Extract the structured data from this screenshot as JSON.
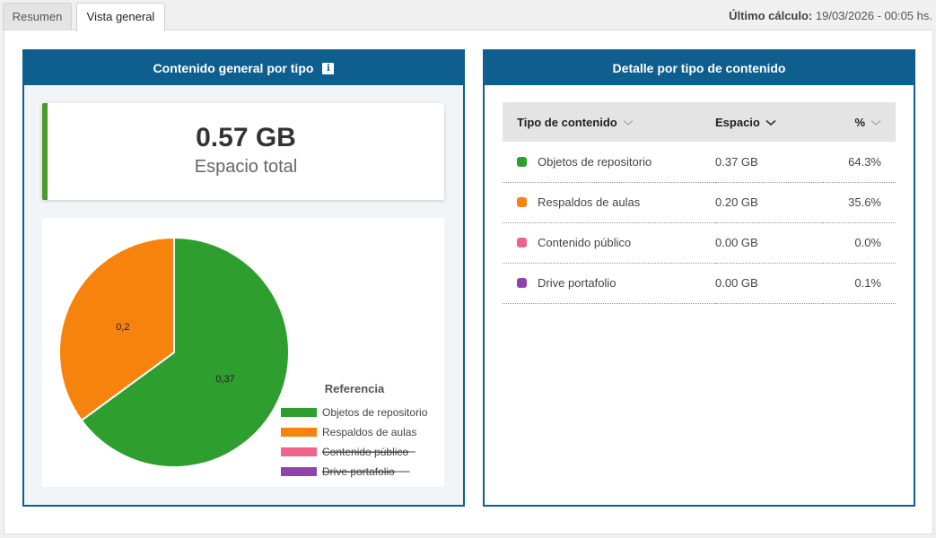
{
  "tabs": [
    {
      "label": "Resumen",
      "active": false
    },
    {
      "label": "Vista general",
      "active": true
    }
  ],
  "last_calc": {
    "label": "Último cálculo:",
    "value": "19/03/2026 - 00:05 hs."
  },
  "left_panel": {
    "title": "Contenido general por tipo",
    "info_icon": "info-icon",
    "total_value": "0.57 GB",
    "total_label": "Espacio total"
  },
  "chart_data": {
    "type": "pie",
    "legend_title": "Referencia",
    "legend_placement": "bottom-right",
    "slices": [
      {
        "label": "Objetos de repositorio",
        "value": 0.37,
        "display": "0,37",
        "color": "#2e9e2e",
        "visible": true
      },
      {
        "label": "Respaldos de aulas",
        "value": 0.2,
        "display": "0,2",
        "color": "#f7830f",
        "visible": true
      },
      {
        "label": "Contenido público",
        "value": 0.0,
        "display": "",
        "color": "#f0638a",
        "visible": false
      },
      {
        "label": "Drive portafolio",
        "value": 0.0,
        "display": "",
        "color": "#8e44ad",
        "visible": false
      }
    ]
  },
  "right_panel": {
    "title": "Detalle por tipo de contenido",
    "columns": {
      "tipo": "Tipo de contenido",
      "espacio": "Espacio",
      "pct": "%"
    },
    "rows": [
      {
        "name": "Objetos de repositorio",
        "space": "0.37 GB",
        "pct": "64.3%",
        "color": "#2e9e2e"
      },
      {
        "name": "Respaldos de aulas",
        "space": "0.20 GB",
        "pct": "35.6%",
        "color": "#f7830f"
      },
      {
        "name": "Contenido público",
        "space": "0.00 GB",
        "pct": "0.0%",
        "color": "#f0638a"
      },
      {
        "name": "Drive portafolio",
        "space": "0.00 GB",
        "pct": "0.1%",
        "color": "#8e44ad"
      }
    ]
  }
}
